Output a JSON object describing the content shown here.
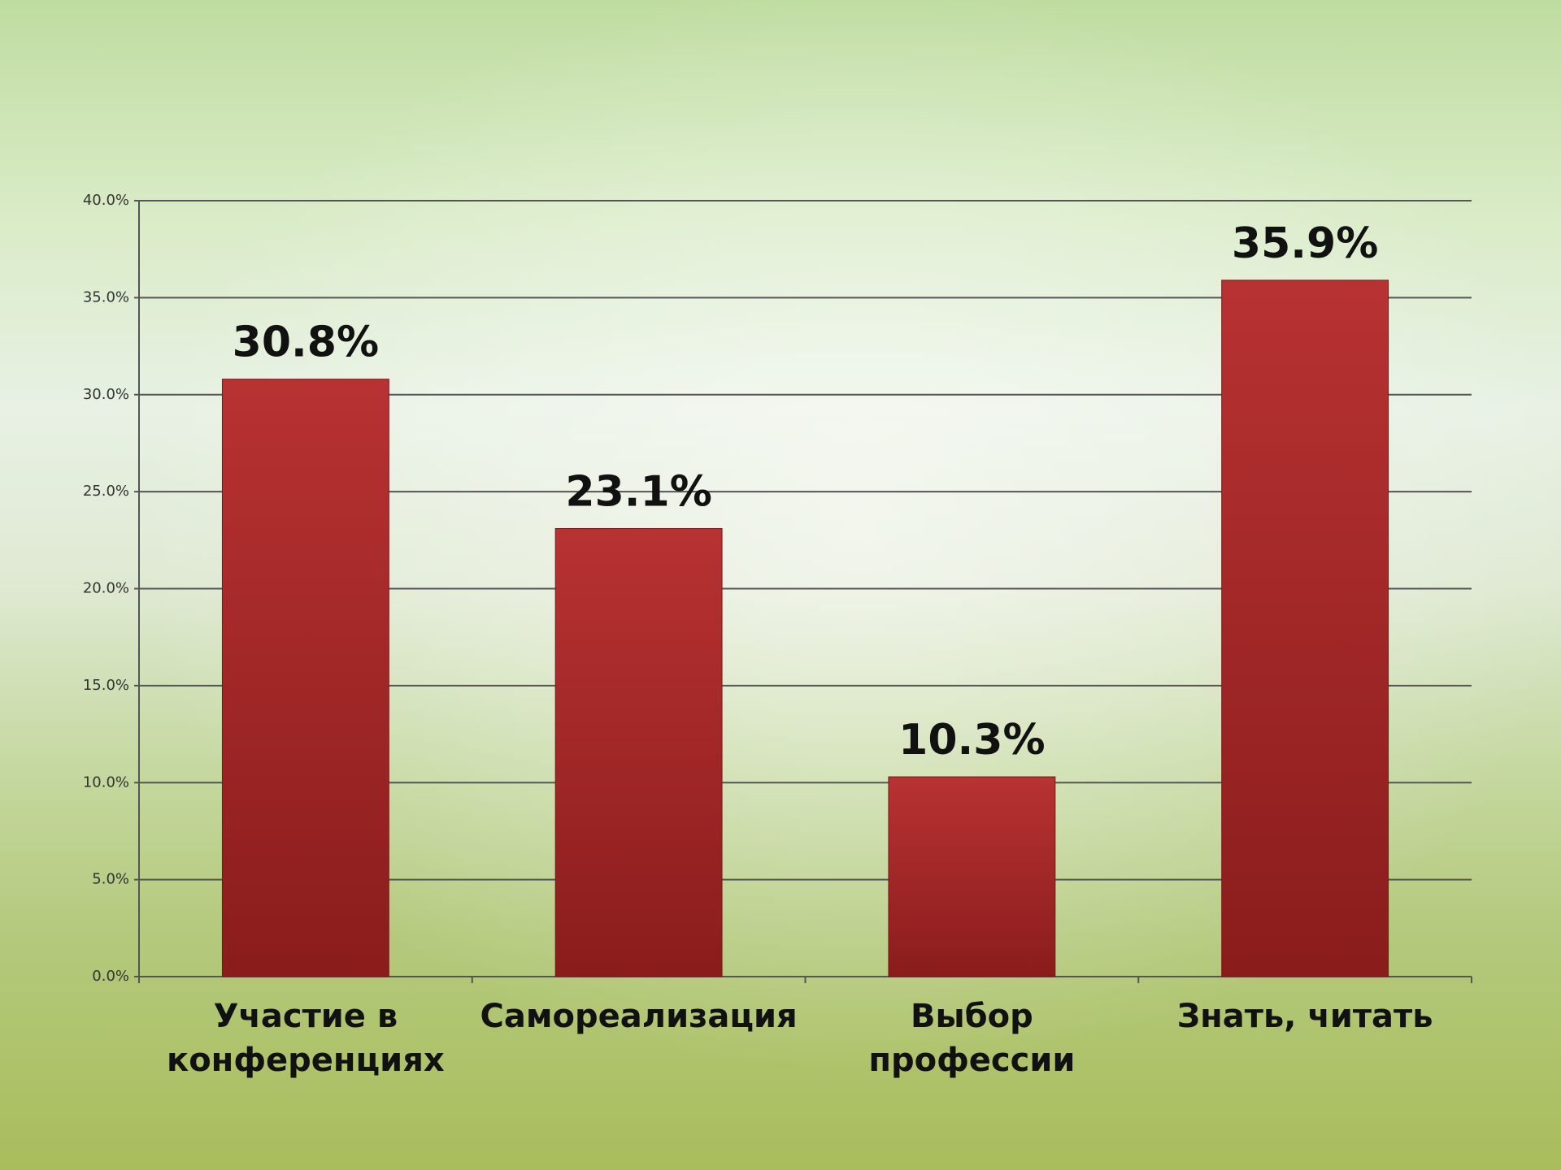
{
  "chart_data": {
    "type": "bar",
    "categories": [
      "Участие в конференциях",
      "Самореализация",
      "Выбор профессии",
      "Знать, читать"
    ],
    "values": [
      30.8,
      23.1,
      10.3,
      35.9
    ],
    "value_labels": [
      "30.8%",
      "23.1%",
      "10.3%",
      "35.9%"
    ],
    "color": "#a82828",
    "ylim": [
      0,
      40
    ],
    "yticks": [
      {
        "value": 0,
        "label": "0.0%"
      },
      {
        "value": 5,
        "label": "5.0%"
      },
      {
        "value": 10,
        "label": "10.0%"
      },
      {
        "value": 15,
        "label": "15.0%"
      },
      {
        "value": 20,
        "label": "20.0%"
      },
      {
        "value": 25,
        "label": "25.0%"
      },
      {
        "value": 30,
        "label": "30.0%"
      },
      {
        "value": 35,
        "label": "35.0%"
      },
      {
        "value": 40,
        "label": "40.0%"
      }
    ],
    "grid": true
  }
}
